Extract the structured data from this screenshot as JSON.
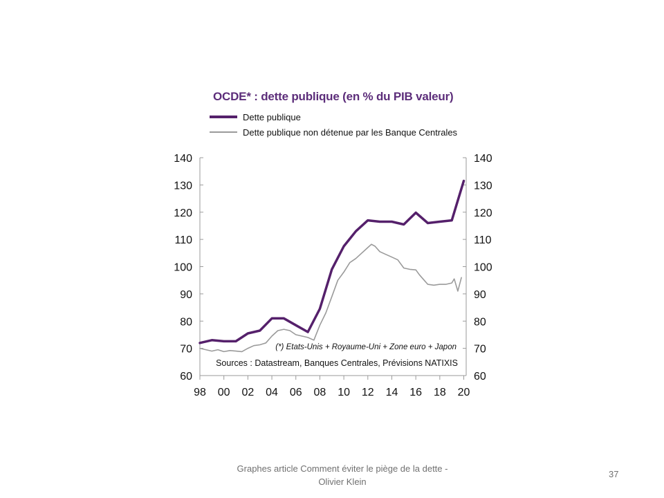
{
  "chart_data": {
    "type": "line",
    "title": "OCDE* : dette publique (en % du PIB valeur)",
    "legend": {
      "placement": "top-left"
    },
    "xlim": [
      1998,
      2020.2
    ],
    "ylim": [
      60,
      140
    ],
    "y_ticks": [
      60,
      70,
      80,
      90,
      100,
      110,
      120,
      130,
      140
    ],
    "x_ticks": [
      {
        "v": 1998,
        "label": "98"
      },
      {
        "v": 2000,
        "label": "00"
      },
      {
        "v": 2002,
        "label": "02"
      },
      {
        "v": 2004,
        "label": "04"
      },
      {
        "v": 2006,
        "label": "06"
      },
      {
        "v": 2008,
        "label": "08"
      },
      {
        "v": 2010,
        "label": "10"
      },
      {
        "v": 2012,
        "label": "12"
      },
      {
        "v": 2014,
        "label": "14"
      },
      {
        "v": 2016,
        "label": "16"
      },
      {
        "v": 2018,
        "label": "18"
      },
      {
        "v": 2020,
        "label": "20"
      }
    ],
    "secondary_y_axis": true,
    "grid": false,
    "annotations": [
      "(*) Etats-Unis + Royaume-Uni + Zone euro + Japon",
      "Sources : Datastream, Banques Centrales, Prévisions NATIXIS"
    ],
    "series": [
      {
        "name": "Dette publique",
        "color": "#55206b",
        "x": [
          1998,
          1999,
          2000,
          2001,
          2002,
          2003,
          2004,
          2005,
          2006,
          2007,
          2008,
          2009,
          2010,
          2011,
          2012,
          2013,
          2014,
          2015,
          2016,
          2017,
          2018,
          2019,
          2020
        ],
        "values": [
          72,
          73,
          72.6,
          72.6,
          75.5,
          76.5,
          81,
          81,
          78.5,
          76,
          84.5,
          99,
          107.5,
          113,
          117,
          116.5,
          116.5,
          115.5,
          119.8,
          116,
          116.5,
          117,
          131.5
        ]
      },
      {
        "name": "Dette publique non détenue par les Banque Centrales",
        "color": "#9a9a9a",
        "x": [
          1998,
          1998.5,
          1999,
          1999.5,
          2000,
          2000.5,
          2001,
          2001.5,
          2002,
          2002.5,
          2003,
          2003.5,
          2004,
          2004.5,
          2005,
          2005.5,
          2006,
          2006.5,
          2007,
          2007.5,
          2008,
          2008.5,
          2009,
          2009.5,
          2010,
          2010.5,
          2011,
          2011.5,
          2012,
          2012.3,
          2012.6,
          2013,
          2013.5,
          2014,
          2014.5,
          2015,
          2015.5,
          2016,
          2016.3,
          2016.7,
          2017,
          2017.5,
          2018,
          2018.5,
          2019,
          2019.2,
          2019.5,
          2019.8
        ],
        "values": [
          70,
          69.5,
          69,
          69.5,
          68.8,
          69.2,
          69,
          68.8,
          70,
          71,
          71.3,
          72,
          74.5,
          76.5,
          77,
          76.5,
          75,
          74.5,
          74,
          73,
          78.5,
          83,
          89,
          95,
          98,
          101.5,
          103,
          105,
          107,
          108.2,
          107.5,
          105.5,
          104.5,
          103.5,
          102.5,
          99.5,
          99,
          98.8,
          97,
          95,
          93.5,
          93.2,
          93.5,
          93.5,
          94,
          95.5,
          91,
          96
        ]
      }
    ]
  },
  "footer": {
    "text": "Graphes article Comment  éviter le piège de la dette - Olivier Klein",
    "page_number": "37"
  }
}
